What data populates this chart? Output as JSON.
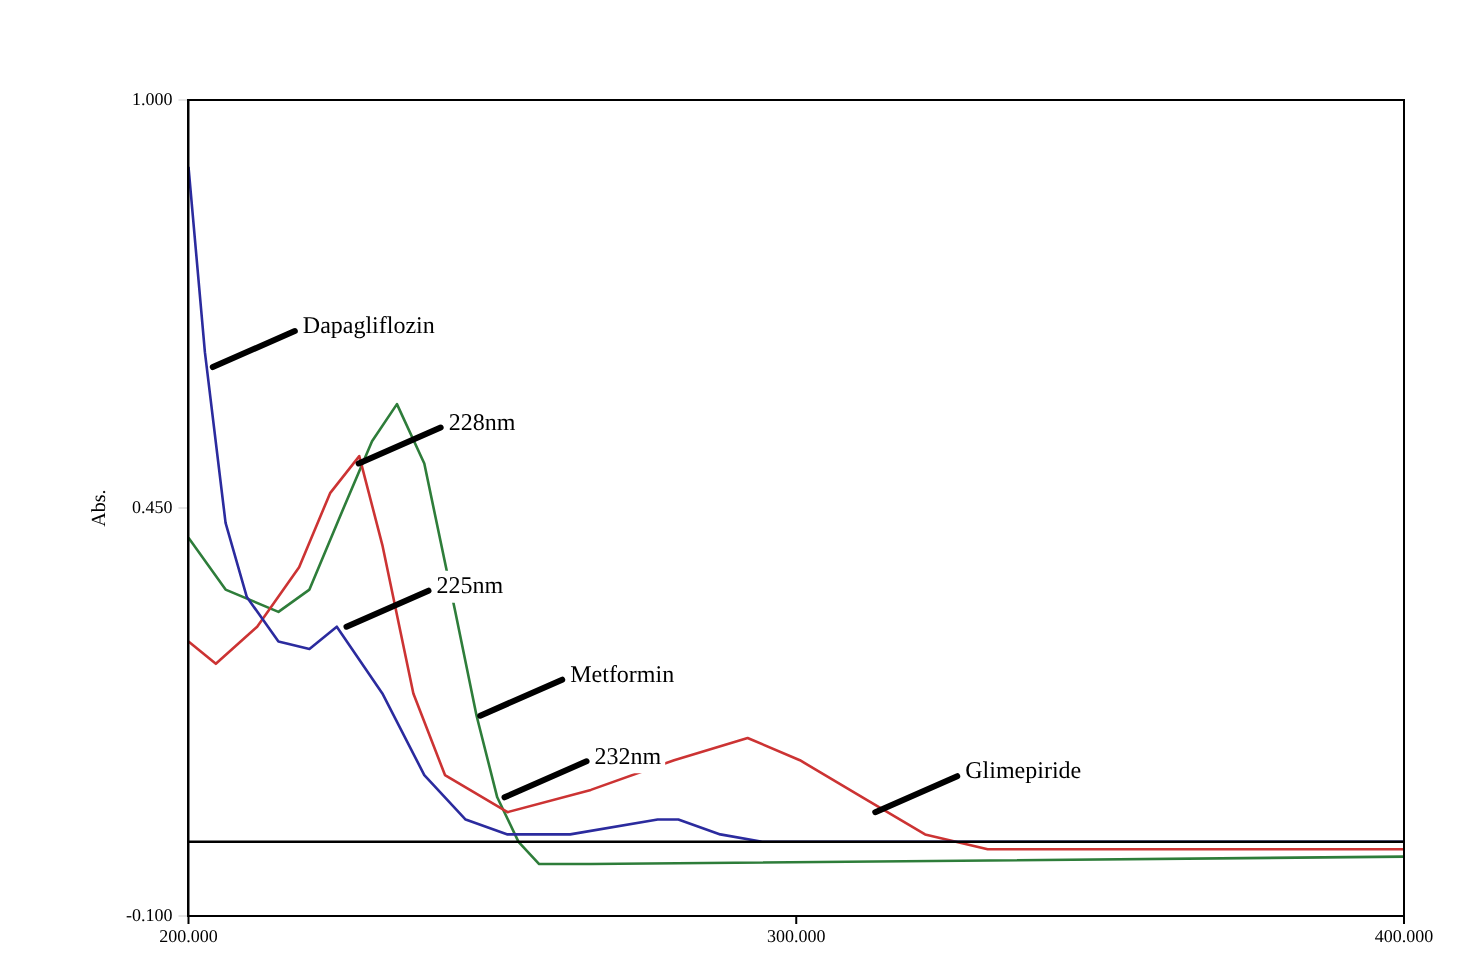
{
  "chart_data": {
    "type": "line",
    "ylabel": "Abs.",
    "xlim": [
      200,
      400
    ],
    "ylim": [
      -0.1,
      1.0
    ],
    "xticks": [
      {
        "value": 200,
        "label": "200.000"
      },
      {
        "value": 300,
        "label": "300.000"
      },
      {
        "value": 400,
        "label": "400.000"
      }
    ],
    "yticks": [
      {
        "value": -0.1,
        "label": "-0.100"
      },
      {
        "value": 0.45,
        "label": "0.450"
      },
      {
        "value": 1.0,
        "label": "1.000"
      }
    ],
    "grid": false,
    "legend": false,
    "marker": "none",
    "line_style": "solid",
    "ref_lines": [
      {
        "axis": "y",
        "value": 0,
        "color": "#000000"
      }
    ],
    "series": [
      {
        "color": "#2b2b9e",
        "x": [
          200,
          202.7,
          206.1,
          209.6,
          214.8,
          219.9,
          224.4,
          231.9,
          238.8,
          245.6,
          252.5,
          262.8,
          277.2,
          280.6,
          287.5,
          294.4,
          400
        ],
        "values": [
          0.91,
          0.66,
          0.43,
          0.33,
          0.27,
          0.26,
          0.29,
          0.2,
          0.09,
          0.03,
          0.01,
          0.01,
          0.03,
          0.03,
          0.01,
          0,
          0
        ]
      },
      {
        "color": "#cc3333",
        "x": [
          200,
          204.5,
          211.3,
          218.2,
          223.3,
          228.1,
          231.9,
          237.0,
          242.2,
          252.5,
          266.2,
          279.9,
          292.0,
          300.6,
          310.9,
          321.2,
          331.5,
          340,
          400
        ],
        "values": [
          0.27,
          0.24,
          0.29,
          0.37,
          0.47,
          0.52,
          0.4,
          0.2,
          0.09,
          0.04,
          0.07,
          0.11,
          0.14,
          0.11,
          0.06,
          0.01,
          -0.01,
          -0.01,
          -0.01
        ]
      },
      {
        "color": "#2e7d3a",
        "x": [
          200,
          206.1,
          214.8,
          219.9,
          225.0,
          230.2,
          234.3,
          238.8,
          243.9,
          247.4,
          250.8,
          254.3,
          257.7,
          266.2,
          400
        ],
        "values": [
          0.41,
          0.34,
          0.31,
          0.34,
          0.44,
          0.54,
          0.59,
          0.51,
          0.31,
          0.17,
          0.06,
          0,
          -0.03,
          -0.03,
          -0.02
        ]
      }
    ],
    "annotations": [
      {
        "text": "Dapagliflozin",
        "x": 204,
        "y": 0.64
      },
      {
        "text": "228nm",
        "x": 228,
        "y": 0.51
      },
      {
        "text": "225nm",
        "x": 226,
        "y": 0.29
      },
      {
        "text": "Metformin",
        "x": 248,
        "y": 0.17
      },
      {
        "text": "232nm",
        "x": 252,
        "y": 0.06
      },
      {
        "text": "Glimepiride",
        "x": 313,
        "y": 0.04
      }
    ]
  }
}
